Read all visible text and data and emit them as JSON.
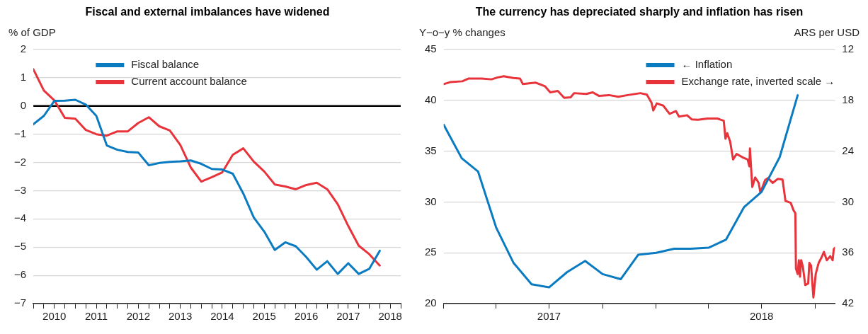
{
  "chart_data": [
    {
      "type": "line",
      "title": "Fiscal and external imbalances have widened",
      "ylabel": "% of GDP",
      "x": [
        2010,
        2010.25,
        2010.5,
        2010.75,
        2011,
        2011.25,
        2011.5,
        2011.75,
        2012,
        2012.25,
        2012.5,
        2012.75,
        2013,
        2013.25,
        2013.5,
        2013.75,
        2014,
        2014.25,
        2014.5,
        2014.75,
        2015,
        2015.25,
        2015.5,
        2015.75,
        2016,
        2016.25,
        2016.5,
        2016.75,
        2017,
        2017.25,
        2017.5,
        2017.75,
        2018,
        2018.25
      ],
      "series": [
        {
          "name": "Fiscal balance",
          "color": "#0b7bc1",
          "values": [
            -0.65,
            -0.35,
            0.18,
            0.19,
            0.22,
            0.05,
            -0.35,
            -1.4,
            -1.55,
            -1.63,
            -1.65,
            -2.1,
            -2.02,
            -1.98,
            -1.96,
            -1.93,
            -2.05,
            -2.23,
            -2.25,
            -2.4,
            -3.1,
            -3.95,
            -4.45,
            -5.1,
            -4.83,
            -4.97,
            -5.35,
            -5.8,
            -5.5,
            -5.95,
            -5.57,
            -5.95,
            -5.77,
            -5.13
          ]
        },
        {
          "name": "Current account balance",
          "color": "#e8333b",
          "values": [
            1.3,
            0.55,
            0.2,
            -0.42,
            -0.45,
            -0.85,
            -1.0,
            -1.05,
            -0.9,
            -0.9,
            -0.6,
            -0.4,
            -0.72,
            -0.87,
            -1.38,
            -2.18,
            -2.68,
            -2.52,
            -2.35,
            -1.73,
            -1.5,
            -1.97,
            -2.32,
            -2.78,
            -2.85,
            -2.95,
            -2.8,
            -2.72,
            -2.95,
            -3.48,
            -4.25,
            -4.95,
            -5.25,
            -5.65
          ]
        }
      ],
      "xlim": [
        2010,
        2018.75
      ],
      "xticks": [
        {
          "value": 2010,
          "label": null
        },
        {
          "value": 2010.25,
          "label": null
        },
        {
          "value": 2010.5,
          "label": "2010"
        },
        {
          "value": 2010.75,
          "label": null
        },
        {
          "value": 2011,
          "label": null
        },
        {
          "value": 2011.25,
          "label": null
        },
        {
          "value": 2011.5,
          "label": "2011"
        },
        {
          "value": 2011.75,
          "label": null
        },
        {
          "value": 2012,
          "label": null
        },
        {
          "value": 2012.25,
          "label": null
        },
        {
          "value": 2012.5,
          "label": "2012"
        },
        {
          "value": 2012.75,
          "label": null
        },
        {
          "value": 2013,
          "label": null
        },
        {
          "value": 2013.25,
          "label": null
        },
        {
          "value": 2013.5,
          "label": "2013"
        },
        {
          "value": 2013.75,
          "label": null
        },
        {
          "value": 2014,
          "label": null
        },
        {
          "value": 2014.25,
          "label": null
        },
        {
          "value": 2014.5,
          "label": "2014"
        },
        {
          "value": 2014.75,
          "label": null
        },
        {
          "value": 2015,
          "label": null
        },
        {
          "value": 2015.25,
          "label": null
        },
        {
          "value": 2015.5,
          "label": "2015"
        },
        {
          "value": 2015.75,
          "label": null
        },
        {
          "value": 2016,
          "label": null
        },
        {
          "value": 2016.25,
          "label": null
        },
        {
          "value": 2016.5,
          "label": "2016"
        },
        {
          "value": 2016.75,
          "label": null
        },
        {
          "value": 2017,
          "label": null
        },
        {
          "value": 2017.25,
          "label": null
        },
        {
          "value": 2017.5,
          "label": "2017"
        },
        {
          "value": 2017.75,
          "label": null
        },
        {
          "value": 2018,
          "label": null
        },
        {
          "value": 2018.25,
          "label": null
        },
        {
          "value": 2018.5,
          "label": "2018"
        },
        {
          "value": 2018.75,
          "label": null
        }
      ],
      "ylim": [
        -7,
        2
      ],
      "yticks": [
        {
          "value": -7,
          "label": "−7"
        },
        {
          "value": -6,
          "label": "−6"
        },
        {
          "value": -5,
          "label": "−5"
        },
        {
          "value": -4,
          "label": "−4"
        },
        {
          "value": -3,
          "label": "−3"
        },
        {
          "value": -2,
          "label": "−2"
        },
        {
          "value": -1,
          "label": "−1"
        },
        0,
        1,
        2
      ],
      "ref_lines": [
        {
          "axis": "y",
          "value": 0,
          "color": "#000000"
        }
      ],
      "grid": "y",
      "legend": "top left"
    },
    {
      "type": "line",
      "title": "The currency has depreciated sharply and inflation has risen",
      "ylabel": "Y−o−y % changes",
      "y2label": "ARS per USD",
      "series": [
        {
          "name": "← Inflation",
          "color": "#0b7bc1",
          "x": [
            "2017-01",
            "2017-02",
            "2017-03",
            "2017-04",
            "2017-05",
            "2017-06",
            "2017-07",
            "2017-08",
            "2017-09",
            "2017-10",
            "2017-11",
            "2017-12",
            "2018-01",
            "2018-02",
            "2018-03",
            "2018-04",
            "2018-05",
            "2018-06",
            "2018-07",
            "2018-08",
            "2018-09"
          ],
          "values": [
            37.6,
            34.3,
            33,
            27.5,
            24,
            21.9,
            21.6,
            23.1,
            24.2,
            22.9,
            22.4,
            24.8,
            25.0,
            25.4,
            25.4,
            25.5,
            26.3,
            29.5,
            31,
            34.4,
            40.5
          ]
        },
        {
          "name": "Exchange rate, inverted scale →",
          "color": "#e8333b",
          "axis": "y2",
          "x": [
            "2017-01-01",
            "2017-01-12",
            "2017-02-02",
            "2017-02-13",
            "2017-03-07",
            "2017-03-24",
            "2017-04-04",
            "2017-04-14",
            "2017-05-01",
            "2017-05-12",
            "2017-05-17",
            "2017-06-08",
            "2017-06-24",
            "2017-07-03",
            "2017-07-16",
            "2017-07-27",
            "2017-08-07",
            "2017-08-13",
            "2017-09-03",
            "2017-09-14",
            "2017-09-25",
            "2017-10-12",
            "2017-10-28",
            "2017-11-13",
            "2017-12-05",
            "2017-12-16",
            "2017-12-24",
            "2017-12-27",
            "2018-01-02",
            "2018-01-13",
            "2018-01-24",
            "2018-02-04",
            "2018-02-09",
            "2018-02-23",
            "2018-03-03",
            "2018-03-14",
            "2018-03-30",
            "2018-04-16",
            "2018-04-27",
            "2018-04-30",
            "2018-05-03",
            "2018-05-08",
            "2018-05-13",
            "2018-05-19",
            "2018-05-30",
            "2018-06-07",
            "2018-06-10",
            "2018-06-11",
            "2018-06-15",
            "2018-06-20",
            "2018-06-26",
            "2018-06-29",
            "2018-07-07",
            "2018-07-12",
            "2018-07-20",
            "2018-07-29",
            "2018-08-06",
            "2018-08-11",
            "2018-08-20",
            "2018-08-25",
            "2018-08-28",
            "2018-08-29",
            "2018-09-01",
            "2018-09-03",
            "2018-09-05",
            "2018-09-07",
            "2018-09-10",
            "2018-09-14",
            "2018-09-19",
            "2018-09-21",
            "2018-09-24",
            "2018-09-28",
            "2018-10-02",
            "2018-10-07",
            "2018-10-12",
            "2018-10-16",
            "2018-10-21",
            "2018-10-27",
            "2018-10-31",
            "2018-11-02",
            "2018-11-04"
          ],
          "values": [
            16.08,
            15.85,
            15.75,
            15.42,
            15.42,
            15.52,
            15.29,
            15.16,
            15.36,
            15.42,
            16.08,
            15.91,
            16.34,
            17.05,
            16.89,
            17.7,
            17.64,
            17.15,
            17.25,
            17.05,
            17.48,
            17.38,
            17.58,
            17.38,
            17.15,
            17.32,
            18.29,
            19.2,
            18.36,
            18.62,
            19.6,
            19.27,
            19.92,
            19.76,
            20.25,
            20.3,
            20.15,
            20.15,
            20.41,
            22.53,
            21.88,
            22.86,
            24.98,
            24.33,
            24.75,
            24.98,
            25.8,
            23.67,
            28.24,
            27.1,
            27.75,
            28.89,
            27.42,
            27.18,
            27.75,
            27.27,
            27.36,
            29.87,
            30.1,
            31.0,
            31.33,
            37.86,
            38.51,
            36.88,
            38.83,
            36.88,
            37.69,
            39.81,
            39.64,
            37.2,
            37.52,
            41.28,
            38.51,
            37.2,
            36.55,
            35.9,
            36.88,
            36.39,
            36.88,
            35.57,
            35.41
          ]
        }
      ],
      "xlim": [
        "2017-01-01",
        "2018-11-04"
      ],
      "xticks": [
        {
          "value": "2017-01-01",
          "label": null
        },
        {
          "value": "2017-04-01",
          "label": null
        },
        {
          "value": "2017-07-01",
          "label": "2017"
        },
        {
          "value": "2017-10-01",
          "label": null
        },
        {
          "value": "2018-01-01",
          "label": null
        },
        {
          "value": "2018-04-01",
          "label": null
        },
        {
          "value": "2018-07-01",
          "label": "2018"
        },
        {
          "value": "2018-10-01",
          "label": null
        }
      ],
      "ylim": [
        20,
        45
      ],
      "yticks": [
        20,
        25,
        30,
        35,
        40,
        45
      ],
      "y2lim": [
        42,
        12
      ],
      "y2ticks": [
        12,
        18,
        24,
        30,
        36,
        42
      ],
      "grid": "y",
      "legend": "top right"
    }
  ]
}
